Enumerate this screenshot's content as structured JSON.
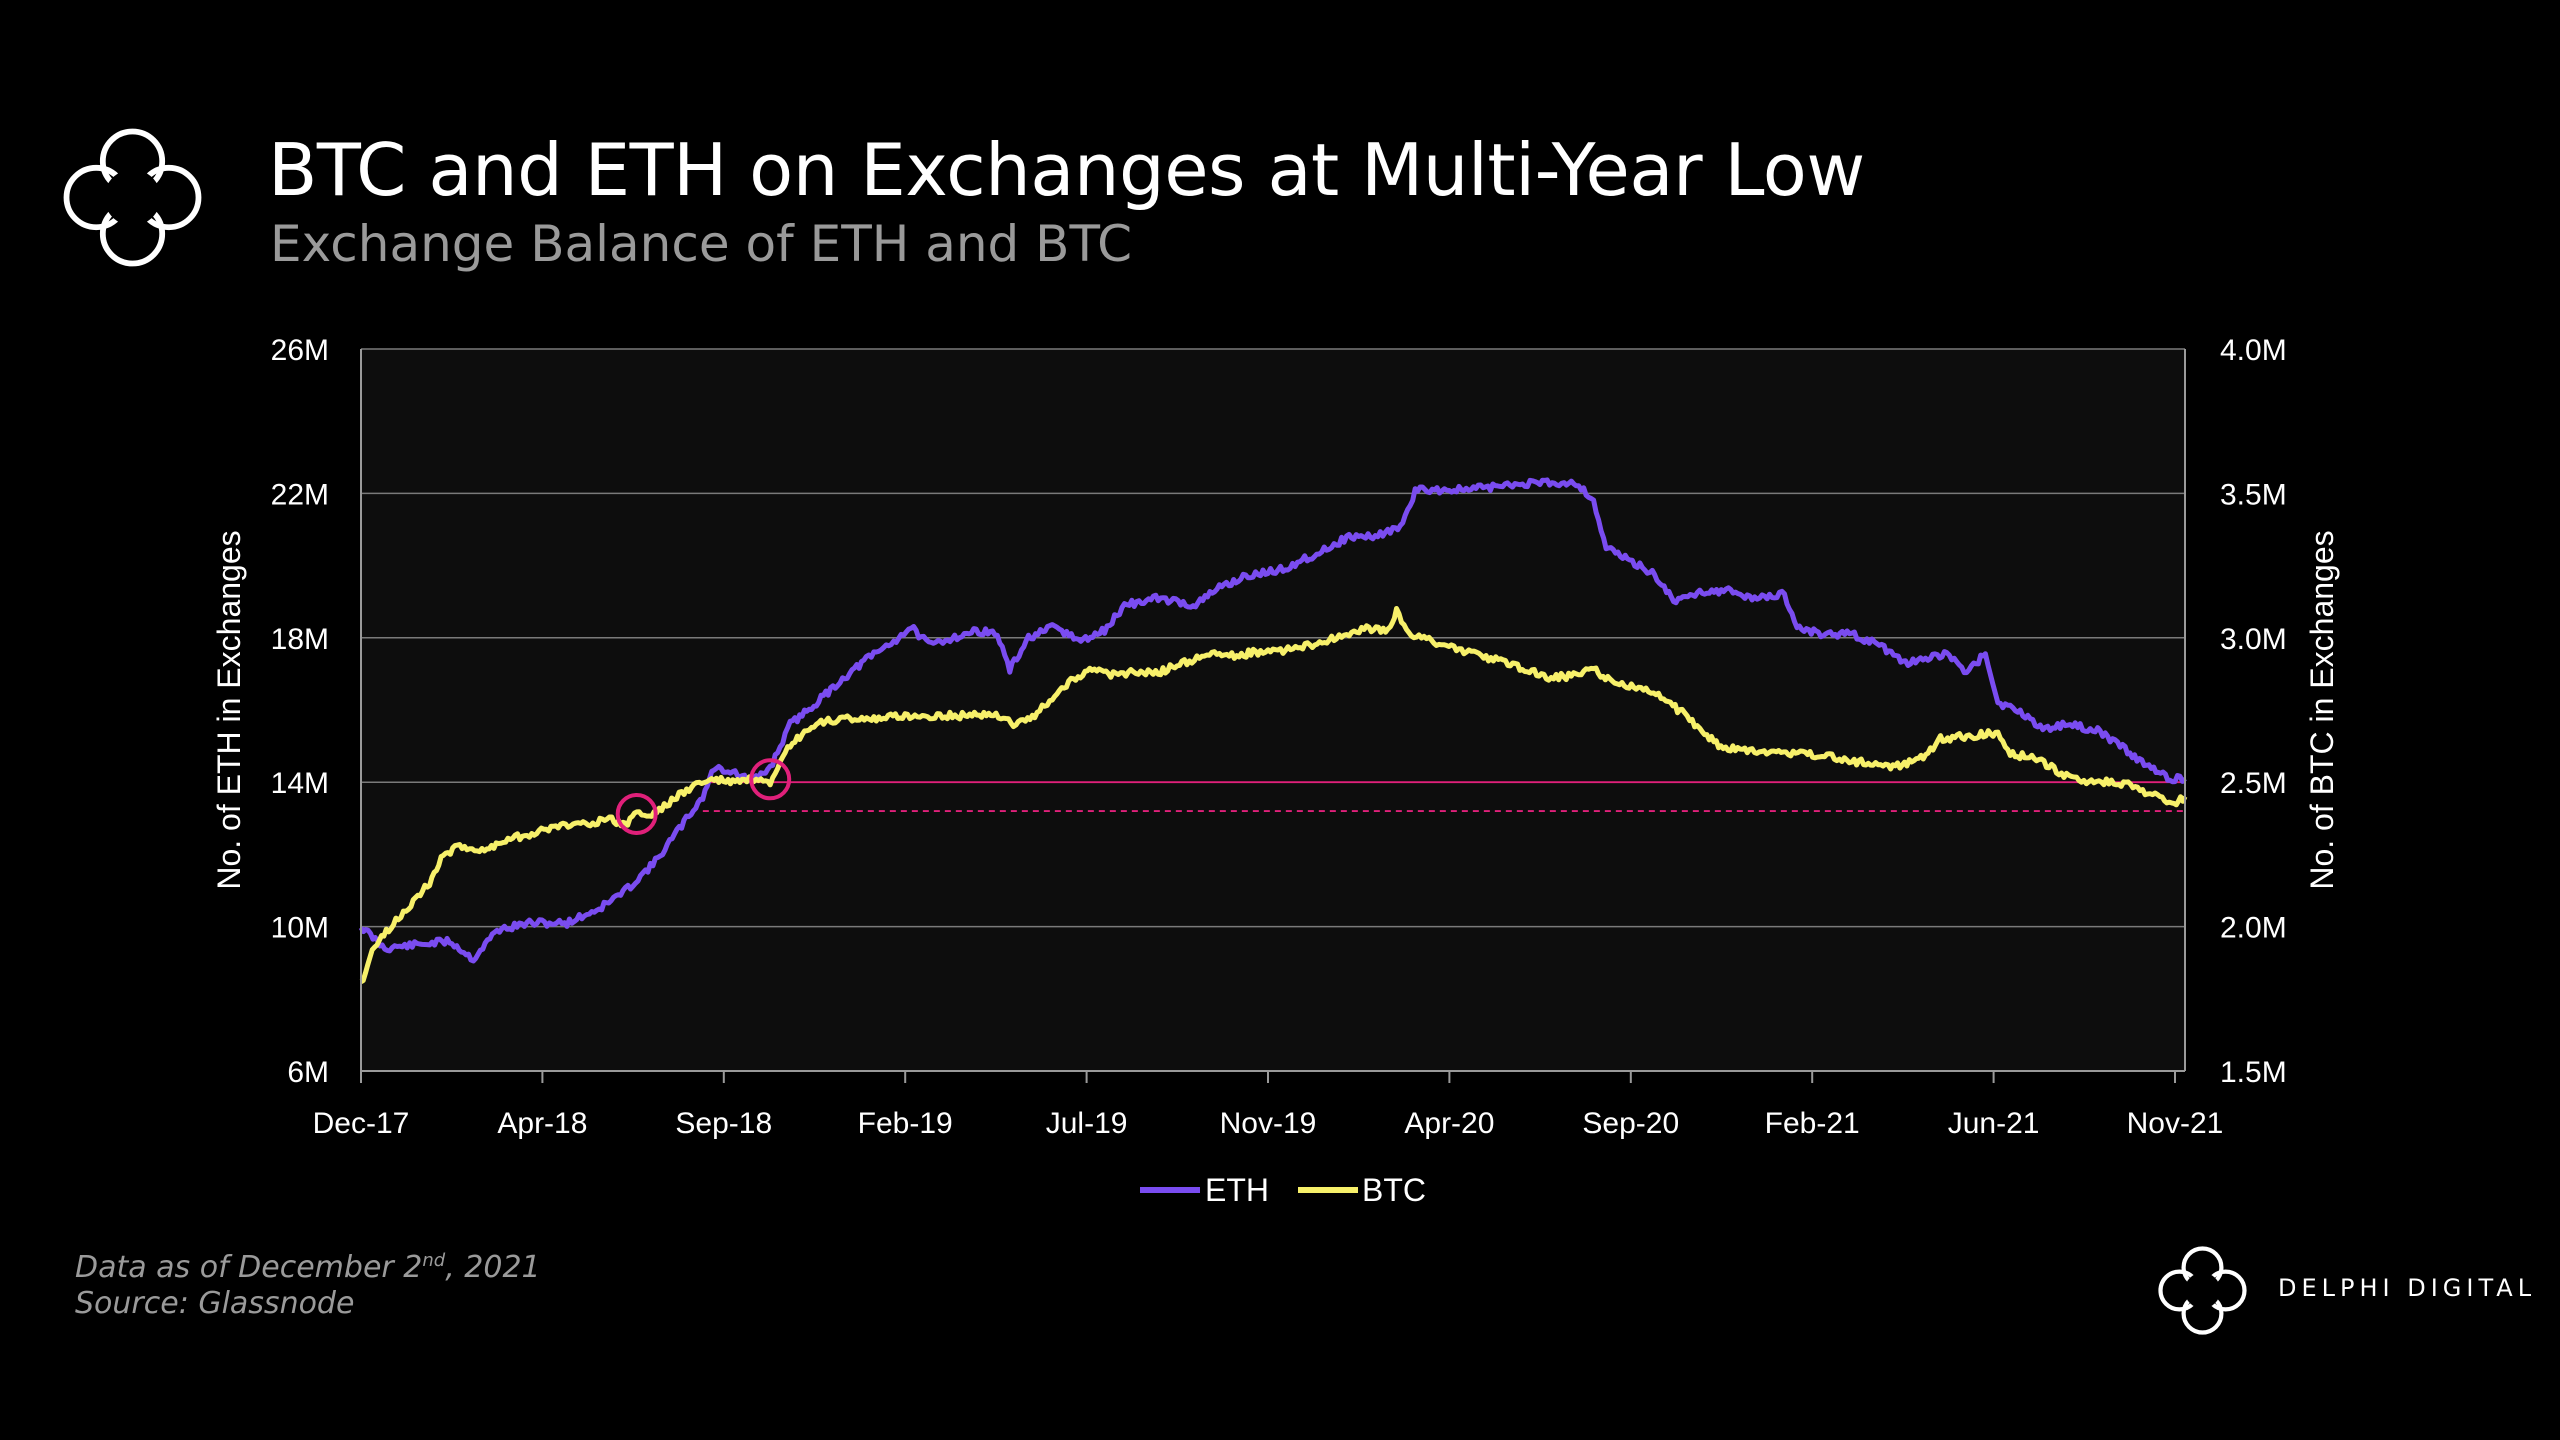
{
  "header": {
    "title": "BTC and ETH on Exchanges at Multi-Year Low",
    "subtitle": "Exchange Balance of ETH and BTC"
  },
  "footer": {
    "data_as_of_prefix": "Data as of December 2",
    "data_as_of_sup": "nd",
    "data_as_of_suffix": ", 2021",
    "source": "Source: Glassnode",
    "brand": "DELPHI DIGITAL"
  },
  "colors": {
    "background": "#000000",
    "plot_background": "#0d0d0d",
    "eth": "#7a4cf0",
    "btc": "#f7f06a",
    "marker": "#e0207a",
    "grid": "#7a7a7a"
  },
  "chart_data": {
    "type": "line",
    "title": "BTC and ETH on Exchanges at Multi-Year Low",
    "subtitle": "Exchange Balance of ETH and BTC",
    "x_ticks": [
      "Dec-17",
      "Apr-18",
      "Sep-18",
      "Feb-19",
      "Jul-19",
      "Nov-19",
      "Apr-20",
      "Sep-20",
      "Feb-21",
      "Jun-21",
      "Nov-21"
    ],
    "x_range": [
      "2017-12-01",
      "2021-12-02"
    ],
    "y_left": {
      "label": "No. of ETH in Exchanges",
      "ticks": [
        "6M",
        "10M",
        "14M",
        "18M",
        "22M",
        "26M"
      ],
      "range": [
        6,
        26
      ],
      "unit": "M"
    },
    "y_right": {
      "label": "No. of BTC in Exchanges",
      "ticks": [
        "1.5M",
        "2.0M",
        "2.5M",
        "3.0M",
        "3.5M",
        "4.0M"
      ],
      "range": [
        1.5,
        4.0
      ],
      "unit": "M"
    },
    "grid": true,
    "legend": {
      "position": "bottom-center",
      "entries": [
        "ETH",
        "BTC"
      ]
    },
    "series": [
      {
        "name": "ETH",
        "axis": "left",
        "points": [
          [
            "2017-12-01",
            10.0
          ],
          [
            "2017-12-20",
            9.4
          ],
          [
            "2018-01-15",
            9.5
          ],
          [
            "2018-02-10",
            9.6
          ],
          [
            "2018-03-01",
            9.1
          ],
          [
            "2018-03-20",
            9.9
          ],
          [
            "2018-04-15",
            10.1
          ],
          [
            "2018-05-15",
            10.1
          ],
          [
            "2018-06-10",
            10.5
          ],
          [
            "2018-07-01",
            11.0
          ],
          [
            "2018-07-25",
            11.8
          ],
          [
            "2018-08-15",
            12.8
          ],
          [
            "2018-09-01",
            13.6
          ],
          [
            "2018-09-10",
            14.4
          ],
          [
            "2018-09-25",
            14.3
          ],
          [
            "2018-10-10",
            14.0
          ],
          [
            "2018-10-25",
            14.4
          ],
          [
            "2018-11-10",
            15.6
          ],
          [
            "2018-12-01",
            16.2
          ],
          [
            "2018-12-20",
            16.8
          ],
          [
            "2019-01-10",
            17.4
          ],
          [
            "2019-02-01",
            17.9
          ],
          [
            "2019-02-15",
            18.3
          ],
          [
            "2019-03-01",
            17.8
          ],
          [
            "2019-03-20",
            18.0
          ],
          [
            "2019-04-10",
            18.2
          ],
          [
            "2019-04-25",
            18.1
          ],
          [
            "2019-05-05",
            17.1
          ],
          [
            "2019-05-20",
            18.0
          ],
          [
            "2019-06-10",
            18.3
          ],
          [
            "2019-07-01",
            17.9
          ],
          [
            "2019-07-20",
            18.2
          ],
          [
            "2019-08-05",
            18.9
          ],
          [
            "2019-09-01",
            19.1
          ],
          [
            "2019-10-01",
            18.9
          ],
          [
            "2019-10-20",
            19.4
          ],
          [
            "2019-11-10",
            19.7
          ],
          [
            "2019-12-10",
            19.9
          ],
          [
            "2020-01-10",
            20.4
          ],
          [
            "2020-02-01",
            20.8
          ],
          [
            "2020-02-20",
            20.8
          ],
          [
            "2020-03-15",
            21.1
          ],
          [
            "2020-03-25",
            22.1
          ],
          [
            "2020-05-01",
            22.1
          ],
          [
            "2020-06-01",
            22.2
          ],
          [
            "2020-07-01",
            22.3
          ],
          [
            "2020-08-01",
            22.3
          ],
          [
            "2020-08-15",
            21.8
          ],
          [
            "2020-08-25",
            20.5
          ],
          [
            "2020-09-15",
            20.1
          ],
          [
            "2020-10-01",
            19.8
          ],
          [
            "2020-10-20",
            19.0
          ],
          [
            "2020-11-10",
            19.3
          ],
          [
            "2020-12-01",
            19.3
          ],
          [
            "2020-12-20",
            19.1
          ],
          [
            "2021-01-15",
            19.2
          ],
          [
            "2021-01-25",
            18.3
          ],
          [
            "2021-02-15",
            18.1
          ],
          [
            "2021-03-10",
            18.1
          ],
          [
            "2021-04-01",
            17.8
          ],
          [
            "2021-04-20",
            17.3
          ],
          [
            "2021-05-10",
            17.4
          ],
          [
            "2021-05-25",
            17.6
          ],
          [
            "2021-06-10",
            17.0
          ],
          [
            "2021-06-25",
            17.6
          ],
          [
            "2021-07-05",
            16.2
          ],
          [
            "2021-07-25",
            15.9
          ],
          [
            "2021-08-10",
            15.5
          ],
          [
            "2021-09-01",
            15.6
          ],
          [
            "2021-09-25",
            15.4
          ],
          [
            "2021-10-15",
            14.9
          ],
          [
            "2021-11-05",
            14.4
          ],
          [
            "2021-11-20",
            14.1
          ],
          [
            "2021-12-02",
            14.1
          ]
        ]
      },
      {
        "name": "BTC",
        "axis": "right",
        "points": [
          [
            "2017-12-01",
            1.8
          ],
          [
            "2017-12-10",
            1.92
          ],
          [
            "2017-12-25",
            2.0
          ],
          [
            "2018-01-10",
            2.08
          ],
          [
            "2018-01-25",
            2.15
          ],
          [
            "2018-02-05",
            2.25
          ],
          [
            "2018-02-20",
            2.28
          ],
          [
            "2018-03-10",
            2.26
          ],
          [
            "2018-03-25",
            2.3
          ],
          [
            "2018-04-15",
            2.32
          ],
          [
            "2018-05-10",
            2.35
          ],
          [
            "2018-06-01",
            2.36
          ],
          [
            "2018-06-20",
            2.37
          ],
          [
            "2018-07-01",
            2.35
          ],
          [
            "2018-07-10",
            2.4
          ],
          [
            "2018-07-20",
            2.38
          ],
          [
            "2018-08-05",
            2.43
          ],
          [
            "2018-08-25",
            2.49
          ],
          [
            "2018-09-10",
            2.51
          ],
          [
            "2018-09-25",
            2.5
          ],
          [
            "2018-10-10",
            2.51
          ],
          [
            "2018-10-25",
            2.49
          ],
          [
            "2018-11-10",
            2.63
          ],
          [
            "2018-12-01",
            2.7
          ],
          [
            "2018-12-20",
            2.72
          ],
          [
            "2019-01-20",
            2.72
          ],
          [
            "2019-02-10",
            2.73
          ],
          [
            "2019-03-10",
            2.73
          ],
          [
            "2019-04-01",
            2.73
          ],
          [
            "2019-04-20",
            2.74
          ],
          [
            "2019-05-10",
            2.7
          ],
          [
            "2019-05-25",
            2.73
          ],
          [
            "2019-06-10",
            2.8
          ],
          [
            "2019-06-25",
            2.86
          ],
          [
            "2019-07-10",
            2.89
          ],
          [
            "2019-07-25",
            2.87
          ],
          [
            "2019-08-10",
            2.88
          ],
          [
            "2019-09-01",
            2.88
          ],
          [
            "2019-09-20",
            2.91
          ],
          [
            "2019-10-10",
            2.94
          ],
          [
            "2019-11-01",
            2.94
          ],
          [
            "2019-11-20",
            2.95
          ],
          [
            "2019-12-20",
            2.96
          ],
          [
            "2020-01-20",
            3.0
          ],
          [
            "2020-02-15",
            3.03
          ],
          [
            "2020-03-05",
            3.03
          ],
          [
            "2020-03-10",
            3.09
          ],
          [
            "2020-03-20",
            3.01
          ],
          [
            "2020-04-15",
            2.98
          ],
          [
            "2020-05-15",
            2.94
          ],
          [
            "2020-06-15",
            2.9
          ],
          [
            "2020-07-10",
            2.86
          ],
          [
            "2020-07-30",
            2.87
          ],
          [
            "2020-08-15",
            2.89
          ],
          [
            "2020-09-01",
            2.84
          ],
          [
            "2020-09-20",
            2.83
          ],
          [
            "2020-10-10",
            2.79
          ],
          [
            "2020-10-25",
            2.74
          ],
          [
            "2020-11-10",
            2.68
          ],
          [
            "2020-11-25",
            2.62
          ],
          [
            "2020-12-20",
            2.61
          ],
          [
            "2021-01-20",
            2.6
          ],
          [
            "2021-02-20",
            2.59
          ],
          [
            "2021-03-10",
            2.57
          ],
          [
            "2021-03-25",
            2.57
          ],
          [
            "2021-04-10",
            2.55
          ],
          [
            "2021-04-25",
            2.57
          ],
          [
            "2021-05-10",
            2.6
          ],
          [
            "2021-05-20",
            2.65
          ],
          [
            "2021-06-10",
            2.66
          ],
          [
            "2021-07-05",
            2.67
          ],
          [
            "2021-07-15",
            2.6
          ],
          [
            "2021-08-05",
            2.58
          ],
          [
            "2021-08-25",
            2.53
          ],
          [
            "2021-09-10",
            2.5
          ],
          [
            "2021-10-10",
            2.5
          ],
          [
            "2021-10-25",
            2.48
          ],
          [
            "2021-11-10",
            2.45
          ],
          [
            "2021-11-25",
            2.43
          ],
          [
            "2021-12-02",
            2.45
          ]
        ]
      }
    ],
    "reference_lines": [
      {
        "axis": "left",
        "value": 14.0,
        "from": "2018-09-01"
      },
      {
        "axis": "left",
        "value": 13.2,
        "from": "2018-09-01"
      }
    ],
    "markers": [
      {
        "date": "2018-07-10",
        "axis": "right",
        "value": 2.39
      },
      {
        "date": "2018-10-25",
        "axis": "right",
        "value": 2.51
      }
    ]
  }
}
